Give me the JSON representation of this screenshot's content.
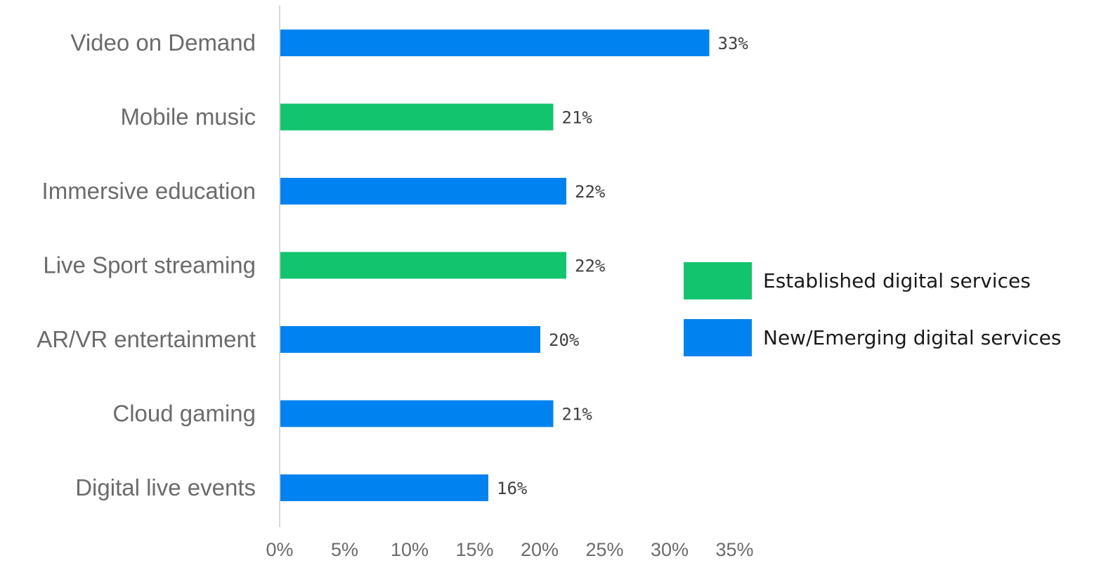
{
  "chart_data": {
    "type": "bar",
    "orientation": "horizontal",
    "categories": [
      "Video on Demand",
      "Mobile music",
      "Immersive education",
      "Live Sport streaming",
      "AR/VR entertainment",
      "Cloud gaming",
      "Digital live events"
    ],
    "values": [
      33,
      21,
      22,
      22,
      20,
      21,
      16
    ],
    "value_labels": [
      "33%",
      "21%",
      "22%",
      "22%",
      "20%",
      "21%",
      "16%"
    ],
    "groups": [
      "New/Emerging digital services",
      "Established digital services",
      "New/Emerging digital services",
      "Established digital services",
      "New/Emerging digital services",
      "New/Emerging digital services",
      "New/Emerging digital services"
    ],
    "xlim": [
      0,
      35
    ],
    "xticks": [
      "0%",
      "5%",
      "10%",
      "15%",
      "20%",
      "25%",
      "30%",
      "35%"
    ],
    "grid": false,
    "legend_position": "right",
    "title": "",
    "xlabel": "",
    "ylabel": ""
  },
  "legend": [
    {
      "label": "Established digital services",
      "color": "#12c46e"
    },
    {
      "label": "New/Emerging digital services",
      "color": "#0082f0"
    }
  ],
  "colors": {
    "Established digital services": "#12c46e",
    "New/Emerging digital services": "#0082f0",
    "axis": "#d9d9d9"
  }
}
